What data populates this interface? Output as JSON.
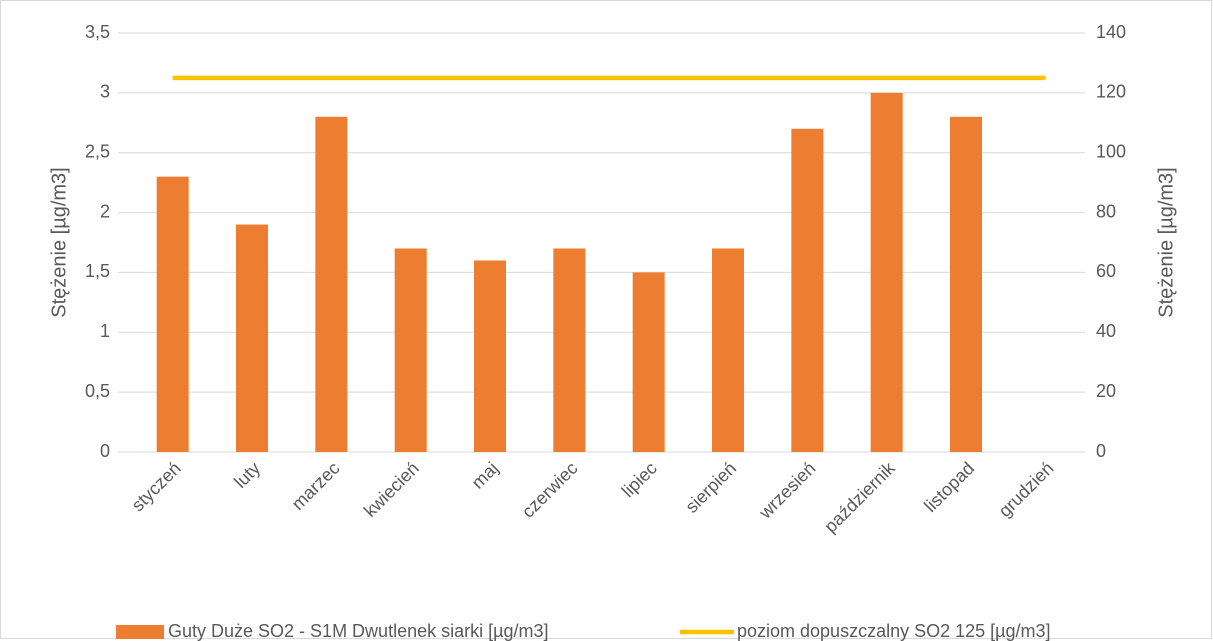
{
  "chart_data": {
    "type": "bar",
    "categories": [
      "styczeń",
      "luty",
      "marzec",
      "kwiecień",
      "maj",
      "czerwiec",
      "lipiec",
      "sierpień",
      "wrzesień",
      "październik",
      "listopad",
      "grudzień"
    ],
    "series": [
      {
        "name": "Guty Duże SO2 - S1M Dwutlenek siarki [µg/m3]",
        "type": "bar",
        "color": "#ed7d31",
        "values": [
          2.3,
          1.9,
          2.8,
          1.7,
          1.6,
          1.7,
          1.5,
          1.7,
          2.7,
          3.0,
          2.8,
          null
        ]
      },
      {
        "name": "poziom dopuszczalny SO2 125 [µg/m3]",
        "type": "line",
        "axis": "y2",
        "color": "#ffc000",
        "values": [
          125,
          125,
          125,
          125,
          125,
          125,
          125,
          125,
          125,
          125,
          125,
          125
        ]
      }
    ],
    "ylabel": "Stężenie [µg/m3]",
    "y2label": "Stężenie [µg/m3]",
    "ylim": [
      0,
      3.5
    ],
    "yticks": [
      0,
      {
        "value": 0.5,
        "label": "0,5"
      },
      1,
      {
        "value": 1.5,
        "label": "1,5"
      },
      2,
      {
        "value": 2.5,
        "label": "2,5"
      },
      3,
      {
        "value": 3.5,
        "label": "3,5"
      }
    ],
    "y2lim": [
      0,
      140
    ],
    "y2ticks": [
      0,
      20,
      40,
      60,
      80,
      100,
      120,
      140
    ],
    "grid": true,
    "legend": "bottom"
  }
}
